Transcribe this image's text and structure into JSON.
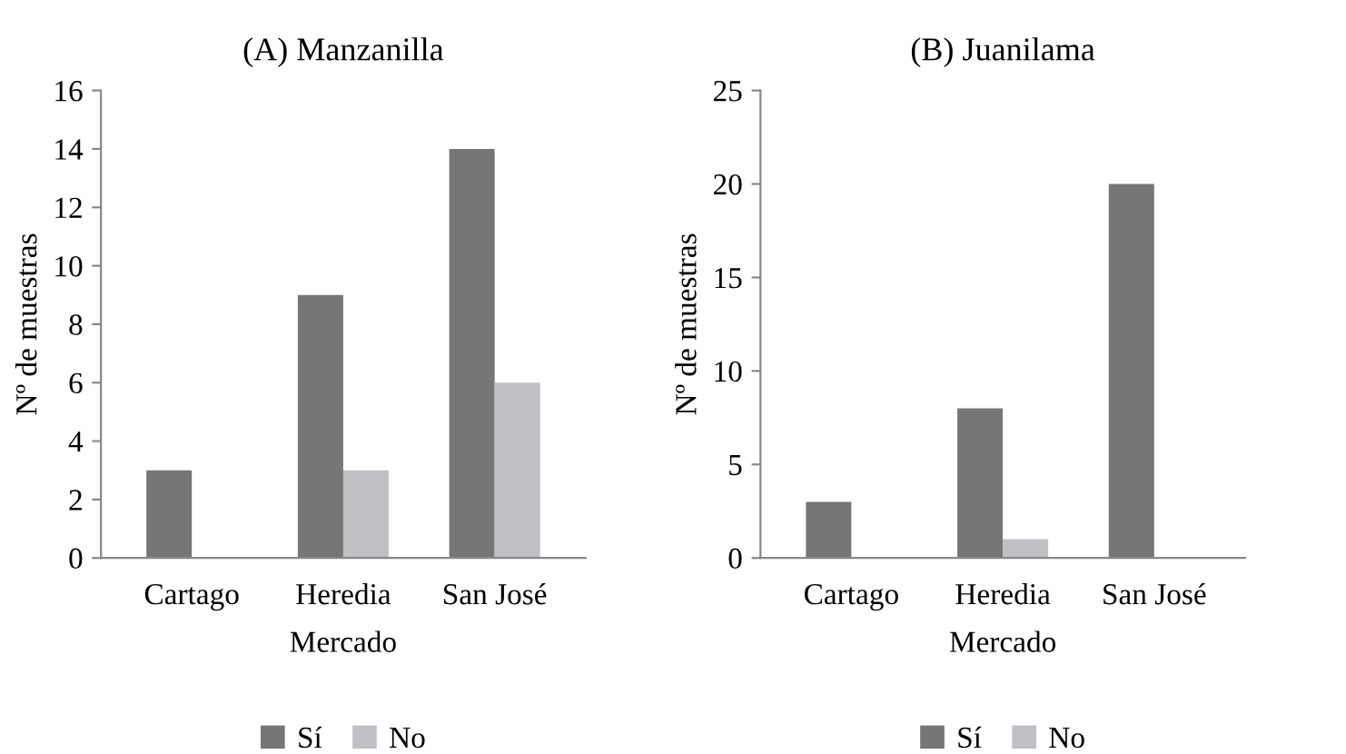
{
  "chart_data": [
    {
      "type": "bar",
      "title": "(A) Manzanilla",
      "xlabel": "Mercado",
      "ylabel": "Nº de muestras",
      "categories": [
        "Cartago",
        "Heredia",
        "San José"
      ],
      "series": [
        {
          "name": "Sí",
          "color": "#767676",
          "values": [
            3,
            9,
            14
          ]
        },
        {
          "name": "No",
          "color": "#c0c0c4",
          "values": [
            0,
            3,
            6
          ]
        }
      ],
      "ylim": [
        0,
        16
      ],
      "yticks": [
        0,
        2,
        4,
        6,
        8,
        10,
        12,
        14,
        16
      ],
      "grid": false,
      "legend": "bottom"
    },
    {
      "type": "bar",
      "title": "(B) Juanilama",
      "xlabel": "Mercado",
      "ylabel": "Nº de muestras",
      "categories": [
        "Cartago",
        "Heredia",
        "San José"
      ],
      "series": [
        {
          "name": "Sí",
          "color": "#767676",
          "values": [
            3,
            8,
            20
          ]
        },
        {
          "name": "No",
          "color": "#c0c0c4",
          "values": [
            0,
            1,
            0
          ]
        }
      ],
      "ylim": [
        0,
        25
      ],
      "yticks": [
        0,
        5,
        10,
        15,
        20,
        25
      ],
      "grid": false,
      "legend": "bottom"
    }
  ]
}
